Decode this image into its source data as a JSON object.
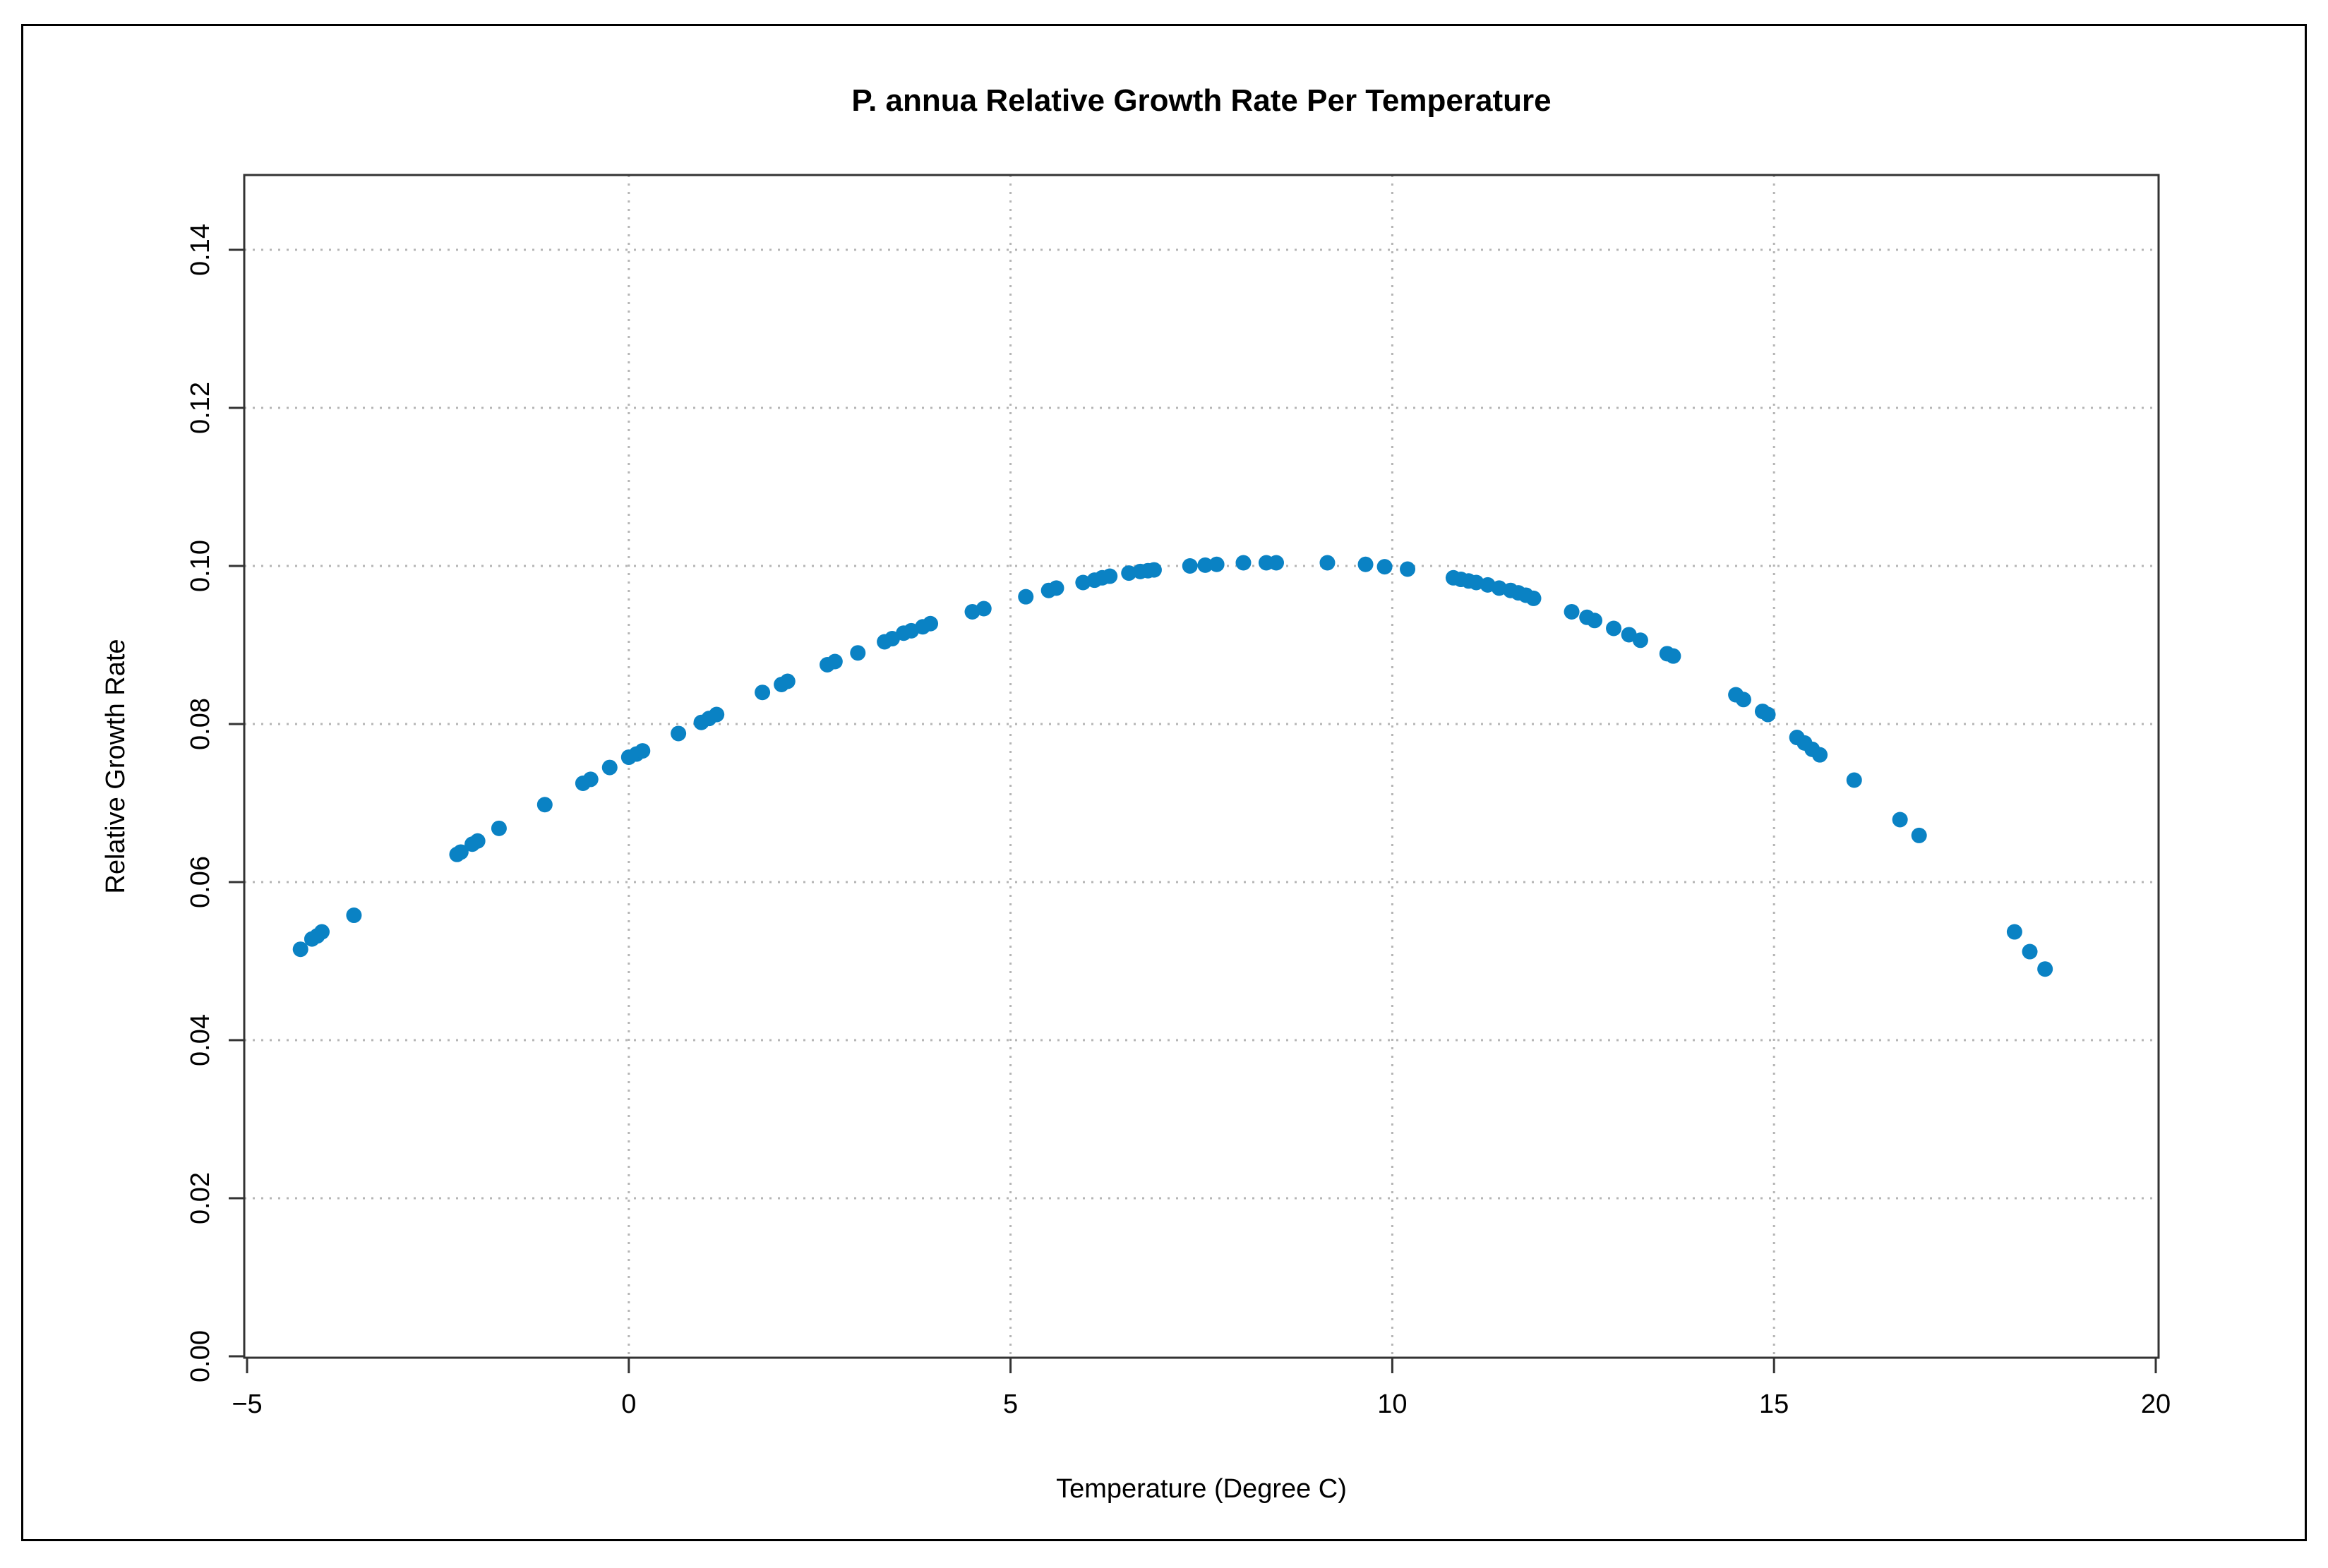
{
  "chart_data": {
    "type": "scatter",
    "title": "P. annua Relative Growth Rate Per Temperature",
    "xlabel": "Temperature (Degree C)",
    "ylabel": "Relative Growth Rate",
    "xlim": [
      -5,
      20
    ],
    "ylim": [
      0,
      0.15
    ],
    "xticks": [
      "−5",
      "0",
      "5",
      "10",
      "15",
      "20"
    ],
    "yticks": [
      "0.00",
      "0.02",
      "0.04",
      "0.06",
      "0.08",
      "0.10",
      "0.12",
      "0.14"
    ],
    "xtick_values": [
      -5,
      0,
      5,
      10,
      15,
      20
    ],
    "ytick_values": [
      0,
      0.02,
      0.04,
      0.06,
      0.08,
      0.1,
      0.12,
      0.14
    ],
    "grid": true,
    "point_color": "#0a82c4",
    "series": [
      {
        "name": "Relative Growth Rate",
        "x": [
          -4.3,
          -4.15,
          -4.08,
          -4.02,
          -3.6,
          -2.25,
          -2.2,
          -2.05,
          -1.98,
          -1.7,
          -1.1,
          -0.6,
          -0.5,
          -0.25,
          0.0,
          0.1,
          0.18,
          0.65,
          0.95,
          1.05,
          1.15,
          1.75,
          2.0,
          2.08,
          2.6,
          2.7,
          3.0,
          3.35,
          3.45,
          3.6,
          3.7,
          3.85,
          3.95,
          4.5,
          4.65,
          5.2,
          5.5,
          5.6,
          5.95,
          6.1,
          6.2,
          6.3,
          6.55,
          6.7,
          6.8,
          6.88,
          7.35,
          7.55,
          7.7,
          8.05,
          8.35,
          8.48,
          9.15,
          9.65,
          9.9,
          10.2,
          10.8,
          10.9,
          11.0,
          11.1,
          11.25,
          11.4,
          11.55,
          11.65,
          11.75,
          11.85,
          12.35,
          12.55,
          12.65,
          12.9,
          13.1,
          13.25,
          13.6,
          13.68,
          14.5,
          14.6,
          14.85,
          14.92,
          15.3,
          15.4,
          15.5,
          15.6,
          16.05,
          16.65,
          16.9,
          18.15,
          18.35,
          18.55
        ],
        "y": [
          0.0515,
          0.0528,
          0.0532,
          0.0537,
          0.0558,
          0.0635,
          0.0638,
          0.0648,
          0.0652,
          0.0668,
          0.0698,
          0.0725,
          0.073,
          0.0745,
          0.0758,
          0.0762,
          0.0766,
          0.0788,
          0.0802,
          0.0807,
          0.0812,
          0.084,
          0.085,
          0.0854,
          0.0875,
          0.0879,
          0.089,
          0.0904,
          0.0908,
          0.0915,
          0.0918,
          0.0923,
          0.0927,
          0.0942,
          0.0946,
          0.0961,
          0.0969,
          0.0972,
          0.0979,
          0.0982,
          0.0985,
          0.0987,
          0.0991,
          0.0993,
          0.0994,
          0.0995,
          0.1,
          0.1001,
          0.1002,
          0.1004,
          0.1004,
          0.1004,
          0.1004,
          0.1002,
          0.0999,
          0.0996,
          0.0985,
          0.0983,
          0.0981,
          0.0979,
          0.0976,
          0.0972,
          0.0969,
          0.0966,
          0.0963,
          0.0959,
          0.0942,
          0.0935,
          0.0931,
          0.0921,
          0.0913,
          0.0906,
          0.0889,
          0.0886,
          0.0837,
          0.0831,
          0.0816,
          0.0812,
          0.0783,
          0.0776,
          0.0768,
          0.0761,
          0.0729,
          0.0679,
          0.0659,
          0.0537,
          0.0512,
          0.049
        ]
      }
    ]
  }
}
